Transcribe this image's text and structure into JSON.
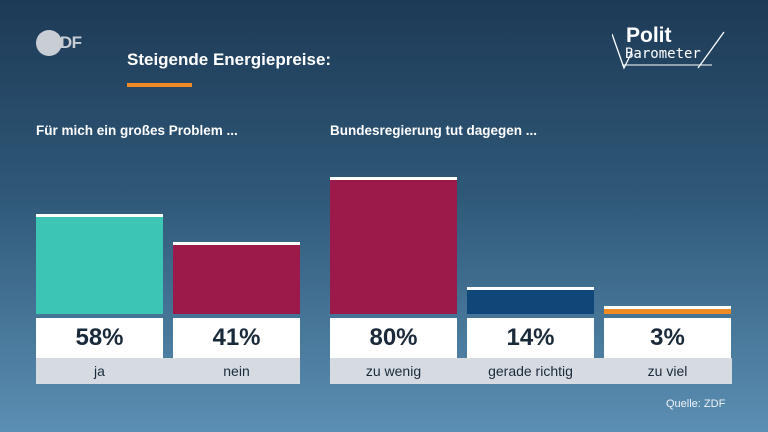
{
  "branding": {
    "logo": "ZDF",
    "logo_right_line1": "Polit",
    "logo_right_line2": "Barometer"
  },
  "headline": "Steigende Energiepreise:",
  "colors": {
    "accent": "#f08a24",
    "teal": "#3cc4b4",
    "crimson": "#9c1a4a",
    "navy": "#0f4778",
    "orange": "#f08a24"
  },
  "chart_data": {
    "type": "bar",
    "groups": [
      {
        "title": "Für mich ein großes Problem ...",
        "bars": [
          {
            "category": "ja",
            "value": 58,
            "label": "58%",
            "color": "#3cc4b4"
          },
          {
            "category": "nein",
            "value": 41,
            "label": "41%",
            "color": "#9c1a4a"
          }
        ]
      },
      {
        "title": "Bundesregierung tut dagegen ...",
        "bars": [
          {
            "category": "zu wenig",
            "value": 80,
            "label": "80%",
            "color": "#9c1a4a"
          },
          {
            "category": "gerade richtig",
            "value": 14,
            "label": "14%",
            "color": "#0f4778"
          },
          {
            "category": "zu viel",
            "value": 3,
            "label": "3%",
            "color": "#f08a24"
          }
        ]
      }
    ],
    "ylim": [
      0,
      100
    ]
  },
  "source": "Quelle: ZDF"
}
